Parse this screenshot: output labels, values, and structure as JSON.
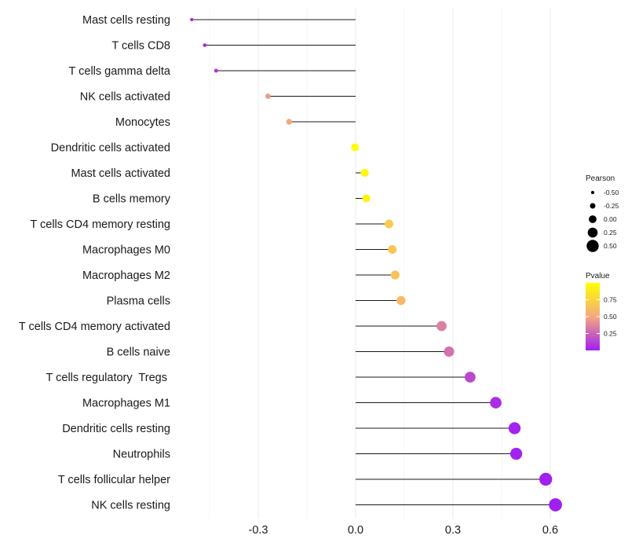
{
  "chart_data": {
    "type": "lollipop",
    "categories": [
      "Mast cells resting",
      "T cells CD8",
      "T cells gamma delta",
      "NK cells activated",
      "Monocytes",
      "Dendritic cells activated",
      "Mast cells activated",
      "B cells memory",
      "T cells CD4 memory resting",
      "Macrophages M0",
      "Macrophages M2",
      "Plasma cells",
      "T cells CD4 memory activated",
      "B cells naive",
      "T cells regulatory  Tregs ",
      "Macrophages M1",
      "Dendritic cells resting",
      "Neutrophils",
      "T cells follicular helper",
      "NK cells resting"
    ],
    "pearson": [
      -0.505,
      -0.465,
      -0.43,
      -0.27,
      -0.205,
      -0.002,
      0.028,
      0.033,
      0.103,
      0.113,
      0.122,
      0.14,
      0.265,
      0.288,
      0.353,
      0.432,
      0.49,
      0.495,
      0.586,
      0.616
    ],
    "pvalue": [
      0.01,
      0.03,
      0.08,
      0.45,
      0.5,
      0.99,
      0.95,
      0.93,
      0.7,
      0.67,
      0.65,
      0.6,
      0.35,
      0.3,
      0.15,
      0.05,
      0.01,
      0.01,
      0.003,
      0.001
    ],
    "xlim": [
      -0.52,
      0.64
    ],
    "xticks": [
      -0.3,
      0.0,
      0.3,
      0.6
    ],
    "xtick_labels": [
      "-0.3",
      "0.0",
      "0.3",
      "0.6"
    ],
    "size_legend": {
      "title": "Pearson",
      "values": [
        -0.5,
        -0.25,
        0.0,
        0.25,
        0.5
      ],
      "labels": [
        "-0.50",
        "-0.25",
        "0.00",
        "0.25",
        "0.50"
      ]
    },
    "color_legend": {
      "title": "Pvalue",
      "ticks": [
        0.25,
        0.5,
        0.75
      ],
      "labels": [
        "0.25",
        "0.50",
        "0.75"
      ],
      "range": [
        0.0,
        1.0
      ],
      "colors": [
        "#a020f0",
        "#f5a880",
        "#ffff00"
      ]
    },
    "grid": true,
    "legend_position": "right"
  }
}
